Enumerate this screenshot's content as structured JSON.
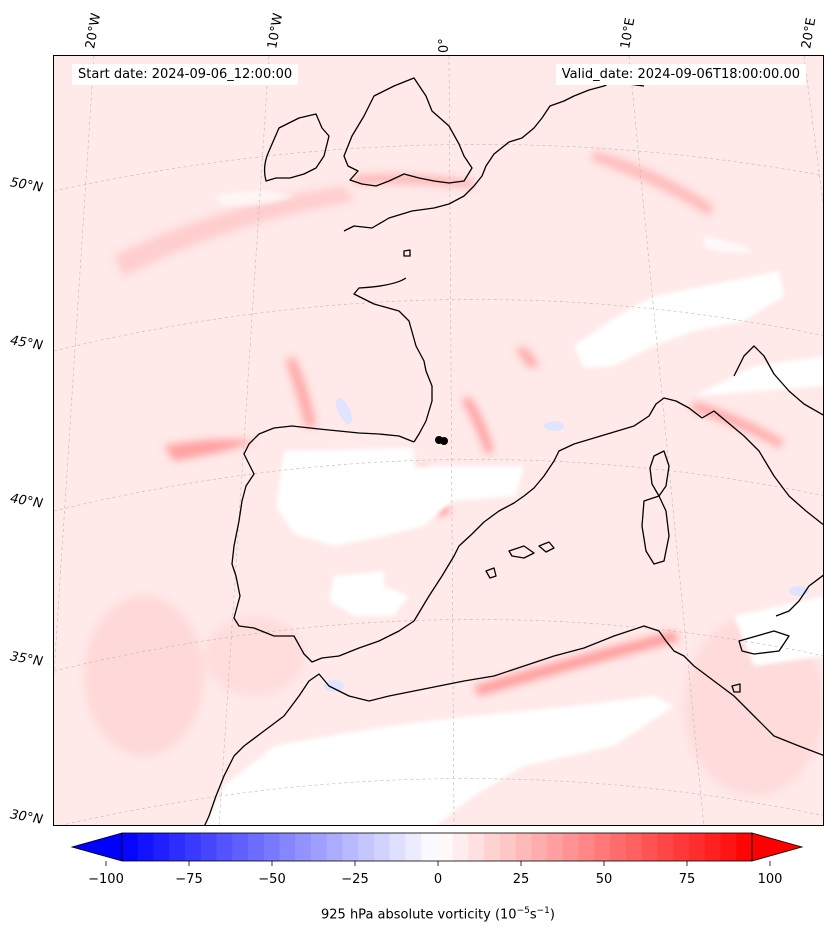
{
  "header": {
    "start_label": "Start date: 2024-09-06_12:00:00",
    "valid_label": "Valid_date: 2024-09-06T18:00:00.00"
  },
  "map": {
    "longitude_labels": [
      "20°W",
      "10°W",
      "0°",
      "10°E",
      "20°E"
    ],
    "latitude_labels": [
      "50°N",
      "45°N",
      "40°N",
      "35°N",
      "30°N"
    ],
    "background_color": "#ffe9e9",
    "coastline_color": "#000000",
    "gridlines": true
  },
  "colorbar": {
    "ticks": [
      "−100",
      "−75",
      "−50",
      "−25",
      "0",
      "25",
      "50",
      "75",
      "100"
    ],
    "min": -100,
    "max": 100,
    "low_color": "#0000ff",
    "mid_color": "#ffffff",
    "high_color": "#ff0000",
    "label_text": "925 hPa absolute vorticity (",
    "label_unit_base": "10",
    "label_unit_exp1": "−5",
    "label_unit_s": "s",
    "label_unit_exp2": "−1",
    "label_close": ")"
  }
}
